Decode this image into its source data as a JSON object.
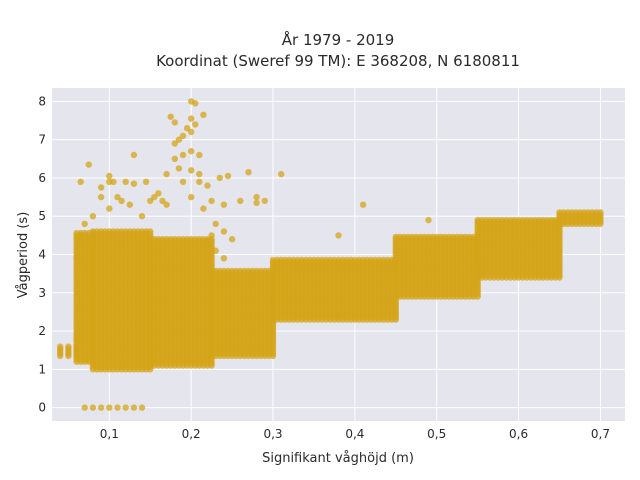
{
  "chart_data": {
    "type": "scatter",
    "title_line1": "År 1979 - 2019",
    "title_line2": "Koordinat (Sweref 99 TM): E 368208, N 6180811",
    "xlabel": "Signifikant våghöjd (m)",
    "ylabel": "Vågperiod (s)",
    "xlim": [
      0.03,
      0.73
    ],
    "ylim": [
      -0.35,
      8.35
    ],
    "x_ticks": [
      {
        "value": 0.1,
        "label": "0,1"
      },
      {
        "value": 0.2,
        "label": "0,2"
      },
      {
        "value": 0.3,
        "label": "0,3"
      },
      {
        "value": 0.4,
        "label": "0,4"
      },
      {
        "value": 0.5,
        "label": "0,5"
      },
      {
        "value": 0.6,
        "label": "0,6"
      },
      {
        "value": 0.7,
        "label": "0,7"
      }
    ],
    "y_ticks": [
      {
        "value": 0,
        "label": "0"
      },
      {
        "value": 1,
        "label": "1"
      },
      {
        "value": 2,
        "label": "2"
      },
      {
        "value": 3,
        "label": "3"
      },
      {
        "value": 4,
        "label": "4"
      },
      {
        "value": 5,
        "label": "5"
      },
      {
        "value": 6,
        "label": "6"
      },
      {
        "value": 7,
        "label": "7"
      },
      {
        "value": 8,
        "label": "8"
      }
    ],
    "grid": true,
    "marker_color": "#D4A418",
    "plot_background": "#E5E5EE",
    "bands": [
      {
        "x0": 0.04,
        "x1": 0.06,
        "step": 0.01,
        "ymin": 1.35,
        "ymax": 1.6
      },
      {
        "x0": 0.06,
        "x1": 0.08,
        "step": 0.005,
        "ymin": 1.2,
        "ymax": 4.6
      },
      {
        "x0": 0.08,
        "x1": 0.15,
        "step": 0.005,
        "ymin": 1.0,
        "ymax": 4.6
      },
      {
        "x0": 0.15,
        "x1": 0.225,
        "step": 0.005,
        "ymin": 1.1,
        "ymax": 4.4
      },
      {
        "x0": 0.225,
        "x1": 0.3,
        "step": 0.005,
        "ymin": 1.35,
        "ymax": 3.6
      },
      {
        "x0": 0.3,
        "x1": 0.45,
        "step": 0.005,
        "ymin": 2.3,
        "ymax": 3.9
      },
      {
        "x0": 0.45,
        "x1": 0.55,
        "step": 0.005,
        "ymin": 2.9,
        "ymax": 4.5
      },
      {
        "x0": 0.55,
        "x1": 0.65,
        "step": 0.005,
        "ymin": 3.4,
        "ymax": 4.9
      },
      {
        "x0": 0.65,
        "x1": 0.7,
        "step": 0.005,
        "ymin": 4.8,
        "ymax": 5.15
      }
    ],
    "points": [
      [
        0.07,
        0
      ],
      [
        0.08,
        0
      ],
      [
        0.09,
        0
      ],
      [
        0.1,
        0
      ],
      [
        0.11,
        0
      ],
      [
        0.12,
        0
      ],
      [
        0.13,
        0
      ],
      [
        0.14,
        0
      ],
      [
        0.065,
        5.9
      ],
      [
        0.075,
        6.35
      ],
      [
        0.065,
        4.5
      ],
      [
        0.08,
        5.0
      ],
      [
        0.07,
        4.8
      ],
      [
        0.09,
        5.75
      ],
      [
        0.09,
        5.5
      ],
      [
        0.1,
        5.9
      ],
      [
        0.1,
        6.05
      ],
      [
        0.105,
        5.9
      ],
      [
        0.1,
        5.2
      ],
      [
        0.11,
        5.5
      ],
      [
        0.115,
        5.4
      ],
      [
        0.12,
        5.9
      ],
      [
        0.125,
        5.3
      ],
      [
        0.13,
        5.85
      ],
      [
        0.13,
        6.6
      ],
      [
        0.14,
        5.0
      ],
      [
        0.145,
        5.9
      ],
      [
        0.15,
        5.4
      ],
      [
        0.155,
        5.5
      ],
      [
        0.16,
        5.6
      ],
      [
        0.165,
        5.4
      ],
      [
        0.17,
        5.3
      ],
      [
        0.17,
        6.1
      ],
      [
        0.175,
        7.6
      ],
      [
        0.18,
        7.45
      ],
      [
        0.18,
        6.9
      ],
      [
        0.18,
        6.5
      ],
      [
        0.185,
        7.0
      ],
      [
        0.185,
        6.25
      ],
      [
        0.19,
        7.1
      ],
      [
        0.19,
        6.6
      ],
      [
        0.19,
        5.9
      ],
      [
        0.195,
        7.3
      ],
      [
        0.2,
        8.0
      ],
      [
        0.2,
        7.55
      ],
      [
        0.2,
        7.2
      ],
      [
        0.2,
        6.7
      ],
      [
        0.2,
        6.2
      ],
      [
        0.2,
        5.5
      ],
      [
        0.205,
        7.95
      ],
      [
        0.205,
        7.4
      ],
      [
        0.21,
        6.6
      ],
      [
        0.21,
        6.1
      ],
      [
        0.21,
        5.9
      ],
      [
        0.215,
        7.65
      ],
      [
        0.215,
        5.2
      ],
      [
        0.22,
        5.8
      ],
      [
        0.225,
        5.4
      ],
      [
        0.23,
        4.8
      ],
      [
        0.235,
        6.0
      ],
      [
        0.24,
        5.3
      ],
      [
        0.24,
        4.6
      ],
      [
        0.245,
        6.05
      ],
      [
        0.25,
        4.4
      ],
      [
        0.26,
        5.4
      ],
      [
        0.27,
        6.15
      ],
      [
        0.28,
        5.5
      ],
      [
        0.28,
        5.35
      ],
      [
        0.29,
        5.4
      ],
      [
        0.31,
        6.1
      ],
      [
        0.41,
        5.3
      ],
      [
        0.49,
        4.9
      ],
      [
        0.38,
        4.5
      ],
      [
        0.38,
        2.4
      ],
      [
        0.23,
        4.1
      ],
      [
        0.24,
        3.9
      ],
      [
        0.22,
        4.35
      ],
      [
        0.225,
        4.5
      ],
      [
        0.06,
        1.8
      ],
      [
        0.065,
        2.0
      ],
      [
        0.065,
        2.7
      ],
      [
        0.07,
        3.1
      ],
      [
        0.07,
        3.6
      ],
      [
        0.06,
        3.9
      ]
    ]
  }
}
